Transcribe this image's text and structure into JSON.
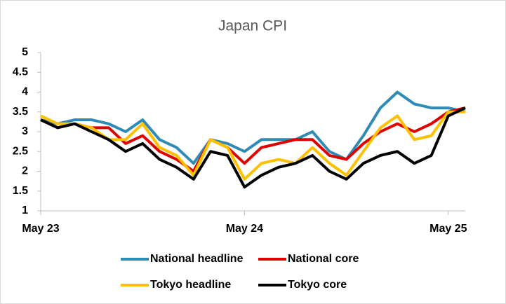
{
  "chart_data": {
    "type": "line",
    "title": "Japan CPI",
    "categories": [
      "May 23",
      null,
      null,
      null,
      null,
      null,
      null,
      null,
      null,
      null,
      null,
      null,
      "May 24",
      null,
      null,
      null,
      null,
      null,
      null,
      null,
      null,
      null,
      null,
      null,
      "May 25",
      null
    ],
    "series": [
      {
        "name": "National headline",
        "color": "#2e8bb5",
        "values": [
          3.3,
          3.2,
          3.3,
          3.3,
          3.2,
          3.0,
          3.3,
          2.8,
          2.6,
          2.2,
          2.8,
          2.7,
          2.5,
          2.8,
          2.8,
          2.8,
          3.0,
          2.5,
          2.3,
          2.9,
          3.6,
          4.0,
          3.7,
          3.6,
          3.6,
          3.5
        ]
      },
      {
        "name": "National core",
        "color": "#e00000",
        "values": [
          3.3,
          3.1,
          3.2,
          3.1,
          3.1,
          2.7,
          2.9,
          2.5,
          2.3,
          2.0,
          2.8,
          2.6,
          2.2,
          2.6,
          2.7,
          2.8,
          2.8,
          2.4,
          2.3,
          2.7,
          3.0,
          3.2,
          3.0,
          3.2,
          3.5,
          3.6
        ]
      },
      {
        "name": "Tokyo headline",
        "color": "#ffc000",
        "values": [
          3.4,
          3.2,
          3.2,
          3.1,
          2.8,
          2.8,
          3.2,
          2.6,
          2.4,
          1.9,
          2.8,
          2.6,
          1.8,
          2.2,
          2.3,
          2.2,
          2.6,
          2.2,
          1.9,
          2.5,
          3.1,
          3.4,
          2.8,
          2.9,
          3.5,
          3.5
        ]
      },
      {
        "name": "Tokyo core",
        "color": "#000000",
        "values": [
          3.3,
          3.1,
          3.2,
          3.0,
          2.8,
          2.5,
          2.7,
          2.3,
          2.1,
          1.8,
          2.5,
          2.4,
          1.6,
          1.9,
          2.1,
          2.2,
          2.4,
          2.0,
          1.8,
          2.2,
          2.4,
          2.5,
          2.2,
          2.4,
          3.4,
          3.6
        ]
      }
    ],
    "ylim": [
      1,
      5
    ],
    "yticks": [
      1,
      1.5,
      2,
      2.5,
      3,
      3.5,
      4,
      4.5,
      5
    ],
    "grid": false
  }
}
